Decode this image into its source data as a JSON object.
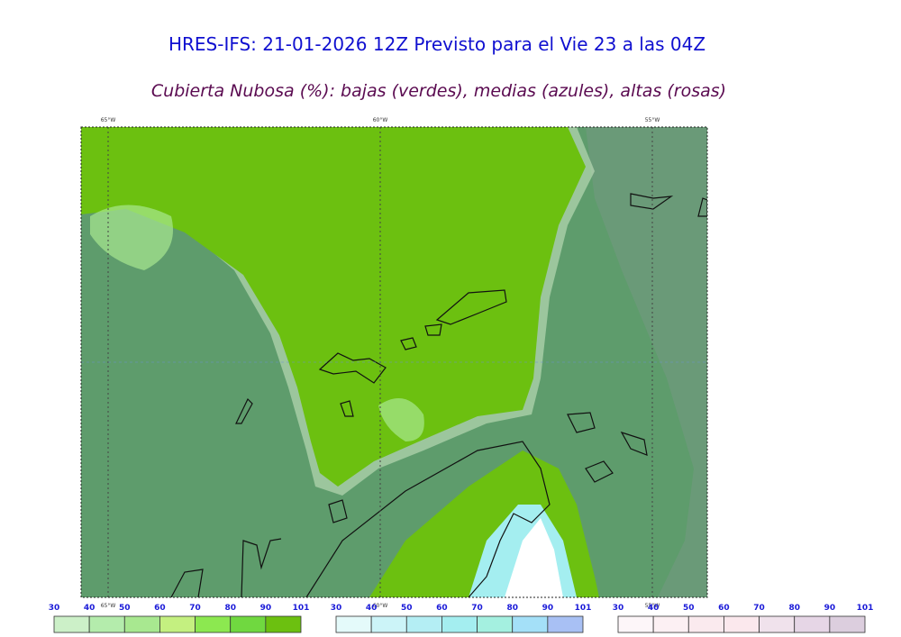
{
  "header": {
    "title": "HRES-IFS: 21-01-2026 12Z Previsto para el Vie 23 a las 04Z",
    "subtitle": "Cubierta Nubosa (%): bajas (verdes), medias (azules), altas (rosas)"
  },
  "map": {
    "longitude_labels_top": [
      "65°W",
      "60°W",
      "55°W"
    ],
    "longitude_labels_bottom": [
      "65°W",
      "60°W",
      "55°W"
    ]
  },
  "colorbars": [
    {
      "ticks": [
        30,
        40,
        50,
        60,
        70,
        80,
        90,
        101
      ],
      "colors": [
        "#ccf0c8",
        "#b4ecac",
        "#a8e890",
        "#c4f080",
        "#8ce850",
        "#70d840",
        "#6cc010"
      ]
    },
    {
      "ticks": [
        30,
        40,
        50,
        60,
        70,
        80,
        90,
        101
      ],
      "colors": [
        "#e4fafa",
        "#ccf4f8",
        "#b4eef4",
        "#a4eef0",
        "#a4f0e0",
        "#a4e0f8",
        "#a8c0f4"
      ]
    },
    {
      "ticks": [
        30,
        40,
        50,
        60,
        70,
        80,
        90,
        101
      ],
      "colors": [
        "#fdf6f9",
        "#fcf0f3",
        "#faeaee",
        "#fbe8ed",
        "#f0e2ec",
        "#e6d6e6",
        "#dccede"
      ]
    }
  ]
}
